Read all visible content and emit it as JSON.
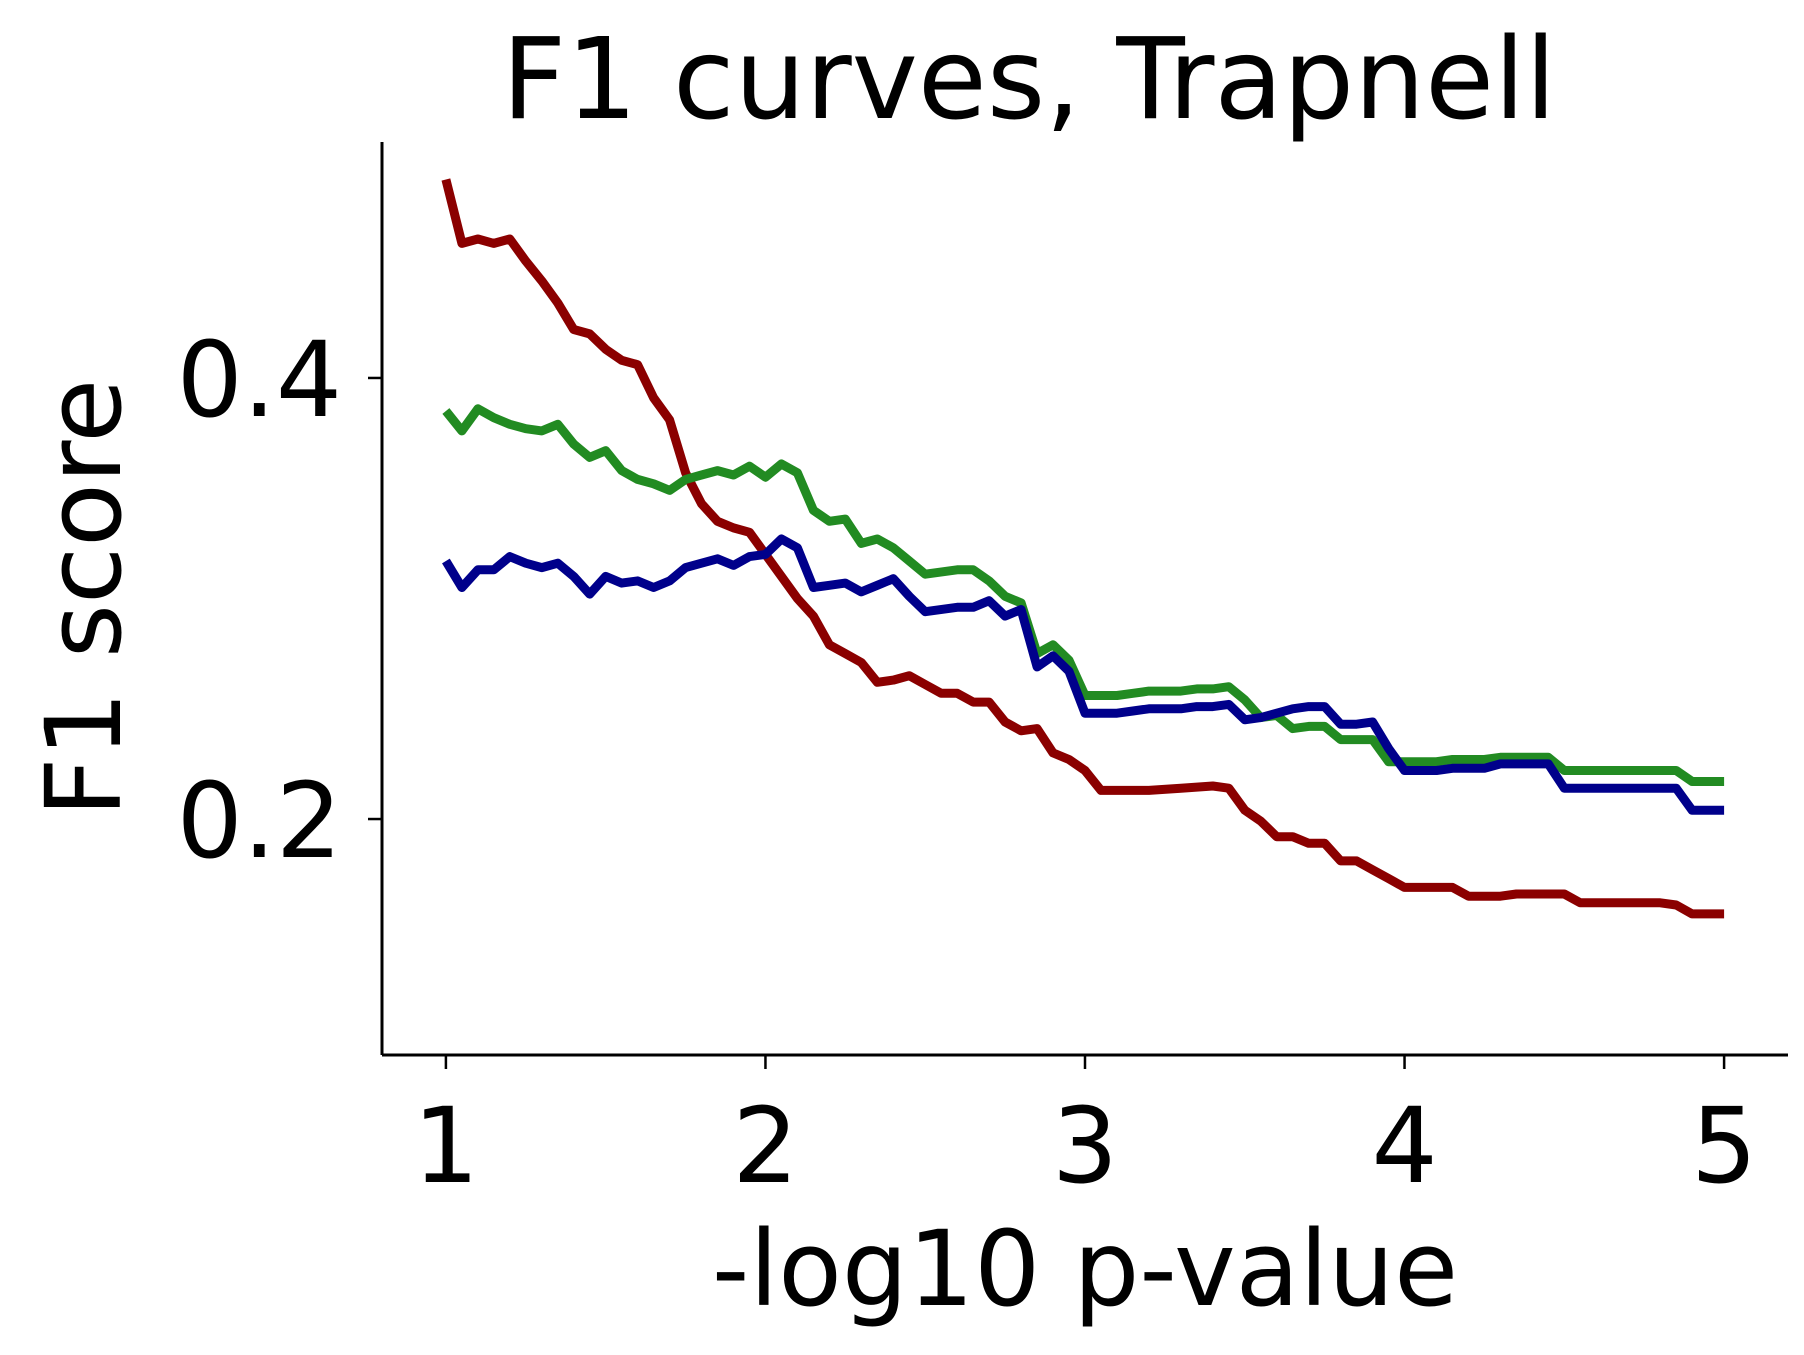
{
  "chart_data": {
    "type": "line",
    "title": "F1 curves, Trapnell",
    "xlabel": "-log10 p-value",
    "ylabel": "F1 score",
    "xlim": [
      0.8,
      5.2
    ],
    "ylim": [
      0.093,
      0.507
    ],
    "xticks": [
      1,
      2,
      3,
      4,
      5
    ],
    "xtick_labels": [
      "1",
      "2",
      "3",
      "4",
      "5"
    ],
    "yticks": [
      0.2,
      0.4
    ],
    "ytick_labels": [
      "0.2",
      "0.4"
    ],
    "grid": false,
    "legend": null,
    "series": [
      {
        "color": "#8b0000",
        "points": [
          [
            1.0,
            0.49
          ],
          [
            1.05,
            0.461
          ],
          [
            1.1,
            0.463
          ],
          [
            1.15,
            0.461
          ],
          [
            1.2,
            0.463
          ],
          [
            1.25,
            0.453
          ],
          [
            1.3,
            0.444
          ],
          [
            1.35,
            0.434
          ],
          [
            1.4,
            0.422
          ],
          [
            1.45,
            0.42
          ],
          [
            1.5,
            0.413
          ],
          [
            1.55,
            0.408
          ],
          [
            1.6,
            0.406
          ],
          [
            1.65,
            0.391
          ],
          [
            1.7,
            0.381
          ],
          [
            1.75,
            0.357
          ],
          [
            1.8,
            0.343
          ],
          [
            1.85,
            0.335
          ],
          [
            1.9,
            0.332
          ],
          [
            1.95,
            0.33
          ],
          [
            2.0,
            0.32
          ],
          [
            2.05,
            0.31
          ],
          [
            2.1,
            0.3
          ],
          [
            2.15,
            0.292
          ],
          [
            2.2,
            0.279
          ],
          [
            2.25,
            0.275
          ],
          [
            2.3,
            0.271
          ],
          [
            2.35,
            0.262
          ],
          [
            2.4,
            0.263
          ],
          [
            2.45,
            0.265
          ],
          [
            2.5,
            0.261
          ],
          [
            2.55,
            0.257
          ],
          [
            2.6,
            0.257
          ],
          [
            2.65,
            0.253
          ],
          [
            2.7,
            0.253
          ],
          [
            2.75,
            0.244
          ],
          [
            2.8,
            0.24
          ],
          [
            2.85,
            0.241
          ],
          [
            2.9,
            0.23
          ],
          [
            2.95,
            0.227
          ],
          [
            3.0,
            0.222
          ],
          [
            3.05,
            0.213
          ],
          [
            3.1,
            0.213
          ],
          [
            3.2,
            0.213
          ],
          [
            3.3,
            0.214
          ],
          [
            3.4,
            0.215
          ],
          [
            3.45,
            0.214
          ],
          [
            3.5,
            0.204
          ],
          [
            3.55,
            0.199
          ],
          [
            3.6,
            0.192
          ],
          [
            3.65,
            0.192
          ],
          [
            3.7,
            0.189
          ],
          [
            3.75,
            0.189
          ],
          [
            3.8,
            0.181
          ],
          [
            3.85,
            0.181
          ],
          [
            3.9,
            0.177
          ],
          [
            3.95,
            0.173
          ],
          [
            4.0,
            0.169
          ],
          [
            4.1,
            0.169
          ],
          [
            4.15,
            0.169
          ],
          [
            4.2,
            0.165
          ],
          [
            4.3,
            0.165
          ],
          [
            4.35,
            0.166
          ],
          [
            4.45,
            0.166
          ],
          [
            4.5,
            0.166
          ],
          [
            4.55,
            0.162
          ],
          [
            4.6,
            0.162
          ],
          [
            4.7,
            0.162
          ],
          [
            4.8,
            0.162
          ],
          [
            4.85,
            0.161
          ],
          [
            4.9,
            0.157
          ],
          [
            5.0,
            0.157
          ]
        ]
      },
      {
        "color": "#228b22",
        "points": [
          [
            1.0,
            0.385
          ],
          [
            1.05,
            0.376
          ],
          [
            1.1,
            0.386
          ],
          [
            1.15,
            0.382
          ],
          [
            1.2,
            0.379
          ],
          [
            1.25,
            0.377
          ],
          [
            1.3,
            0.376
          ],
          [
            1.35,
            0.379
          ],
          [
            1.4,
            0.37
          ],
          [
            1.45,
            0.364
          ],
          [
            1.5,
            0.367
          ],
          [
            1.55,
            0.358
          ],
          [
            1.6,
            0.354
          ],
          [
            1.65,
            0.352
          ],
          [
            1.7,
            0.349
          ],
          [
            1.75,
            0.354
          ],
          [
            1.8,
            0.356
          ],
          [
            1.85,
            0.358
          ],
          [
            1.9,
            0.356
          ],
          [
            1.95,
            0.36
          ],
          [
            2.0,
            0.355
          ],
          [
            2.05,
            0.361
          ],
          [
            2.1,
            0.357
          ],
          [
            2.15,
            0.34
          ],
          [
            2.2,
            0.335
          ],
          [
            2.25,
            0.336
          ],
          [
            2.3,
            0.325
          ],
          [
            2.35,
            0.327
          ],
          [
            2.4,
            0.323
          ],
          [
            2.45,
            0.317
          ],
          [
            2.5,
            0.311
          ],
          [
            2.6,
            0.313
          ],
          [
            2.65,
            0.313
          ],
          [
            2.7,
            0.308
          ],
          [
            2.75,
            0.301
          ],
          [
            2.8,
            0.298
          ],
          [
            2.85,
            0.275
          ],
          [
            2.9,
            0.279
          ],
          [
            2.95,
            0.272
          ],
          [
            3.0,
            0.256
          ],
          [
            3.1,
            0.256
          ],
          [
            3.15,
            0.257
          ],
          [
            3.2,
            0.258
          ],
          [
            3.3,
            0.258
          ],
          [
            3.35,
            0.259
          ],
          [
            3.4,
            0.259
          ],
          [
            3.45,
            0.26
          ],
          [
            3.5,
            0.254
          ],
          [
            3.55,
            0.246
          ],
          [
            3.6,
            0.247
          ],
          [
            3.65,
            0.241
          ],
          [
            3.7,
            0.242
          ],
          [
            3.75,
            0.242
          ],
          [
            3.8,
            0.236
          ],
          [
            3.85,
            0.236
          ],
          [
            3.9,
            0.236
          ],
          [
            3.95,
            0.226
          ],
          [
            4.0,
            0.226
          ],
          [
            4.1,
            0.226
          ],
          [
            4.15,
            0.227
          ],
          [
            4.25,
            0.227
          ],
          [
            4.3,
            0.228
          ],
          [
            4.45,
            0.228
          ],
          [
            4.5,
            0.222
          ],
          [
            4.6,
            0.222
          ],
          [
            4.85,
            0.222
          ],
          [
            4.9,
            0.217
          ],
          [
            5.0,
            0.217
          ]
        ]
      },
      {
        "color": "#00008b",
        "points": [
          [
            1.0,
            0.317
          ],
          [
            1.05,
            0.305
          ],
          [
            1.1,
            0.313
          ],
          [
            1.15,
            0.313
          ],
          [
            1.2,
            0.319
          ],
          [
            1.25,
            0.316
          ],
          [
            1.3,
            0.314
          ],
          [
            1.35,
            0.316
          ],
          [
            1.4,
            0.31
          ],
          [
            1.45,
            0.302
          ],
          [
            1.5,
            0.31
          ],
          [
            1.55,
            0.307
          ],
          [
            1.6,
            0.308
          ],
          [
            1.65,
            0.305
          ],
          [
            1.7,
            0.308
          ],
          [
            1.75,
            0.314
          ],
          [
            1.8,
            0.316
          ],
          [
            1.85,
            0.318
          ],
          [
            1.9,
            0.315
          ],
          [
            1.95,
            0.319
          ],
          [
            2.0,
            0.32
          ],
          [
            2.05,
            0.327
          ],
          [
            2.1,
            0.323
          ],
          [
            2.15,
            0.305
          ],
          [
            2.2,
            0.306
          ],
          [
            2.25,
            0.307
          ],
          [
            2.3,
            0.303
          ],
          [
            2.35,
            0.306
          ],
          [
            2.4,
            0.309
          ],
          [
            2.45,
            0.301
          ],
          [
            2.5,
            0.294
          ],
          [
            2.6,
            0.296
          ],
          [
            2.65,
            0.296
          ],
          [
            2.7,
            0.299
          ],
          [
            2.75,
            0.292
          ],
          [
            2.8,
            0.295
          ],
          [
            2.85,
            0.269
          ],
          [
            2.9,
            0.274
          ],
          [
            2.95,
            0.267
          ],
          [
            3.0,
            0.248
          ],
          [
            3.1,
            0.248
          ],
          [
            3.15,
            0.249
          ],
          [
            3.2,
            0.25
          ],
          [
            3.3,
            0.25
          ],
          [
            3.35,
            0.251
          ],
          [
            3.4,
            0.251
          ],
          [
            3.45,
            0.252
          ],
          [
            3.5,
            0.245
          ],
          [
            3.55,
            0.246
          ],
          [
            3.6,
            0.248
          ],
          [
            3.65,
            0.25
          ],
          [
            3.7,
            0.251
          ],
          [
            3.75,
            0.251
          ],
          [
            3.8,
            0.243
          ],
          [
            3.85,
            0.243
          ],
          [
            3.9,
            0.244
          ],
          [
            3.95,
            0.232
          ],
          [
            4.0,
            0.222
          ],
          [
            4.1,
            0.222
          ],
          [
            4.15,
            0.223
          ],
          [
            4.25,
            0.223
          ],
          [
            4.3,
            0.225
          ],
          [
            4.45,
            0.225
          ],
          [
            4.5,
            0.214
          ],
          [
            4.6,
            0.214
          ],
          [
            4.85,
            0.214
          ],
          [
            4.9,
            0.204
          ],
          [
            5.0,
            0.204
          ]
        ]
      }
    ]
  }
}
